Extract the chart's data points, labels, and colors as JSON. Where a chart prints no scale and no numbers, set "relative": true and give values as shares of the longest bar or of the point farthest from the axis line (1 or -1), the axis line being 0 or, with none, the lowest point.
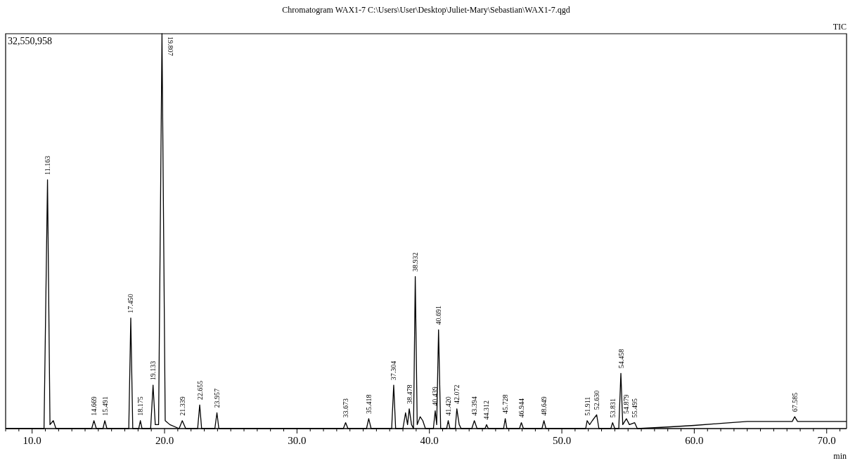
{
  "chart_data": {
    "type": "line",
    "relative": true,
    "title": "Chromatogram WAX1-7 C:\\Users\\User\\Desktop\\Juliet-Mary\\Sebastian\\WAX1-7.qgd",
    "xlabel": "min",
    "xlim": [
      8.0,
      71.5
    ],
    "xticks": [
      {
        "value": 8,
        "label": null
      },
      {
        "value": 9,
        "label": null
      },
      {
        "value": 10,
        "label": "10.0"
      },
      {
        "value": 11,
        "label": null
      },
      {
        "value": 12,
        "label": null
      },
      {
        "value": 13,
        "label": null
      },
      {
        "value": 14,
        "label": null
      },
      {
        "value": 15,
        "label": null
      },
      {
        "value": 16,
        "label": null
      },
      {
        "value": 17,
        "label": null
      },
      {
        "value": 18,
        "label": null
      },
      {
        "value": 19,
        "label": null
      },
      {
        "value": 20,
        "label": "20.0"
      },
      {
        "value": 21,
        "label": null
      },
      {
        "value": 22,
        "label": null
      },
      {
        "value": 23,
        "label": null
      },
      {
        "value": 24,
        "label": null
      },
      {
        "value": 25,
        "label": null
      },
      {
        "value": 26,
        "label": null
      },
      {
        "value": 27,
        "label": null
      },
      {
        "value": 28,
        "label": null
      },
      {
        "value": 29,
        "label": null
      },
      {
        "value": 30,
        "label": "30.0"
      },
      {
        "value": 31,
        "label": null
      },
      {
        "value": 32,
        "label": null
      },
      {
        "value": 33,
        "label": null
      },
      {
        "value": 34,
        "label": null
      },
      {
        "value": 35,
        "label": null
      },
      {
        "value": 36,
        "label": null
      },
      {
        "value": 37,
        "label": null
      },
      {
        "value": 38,
        "label": null
      },
      {
        "value": 39,
        "label": null
      },
      {
        "value": 40,
        "label": "40.0"
      },
      {
        "value": 41,
        "label": null
      },
      {
        "value": 42,
        "label": null
      },
      {
        "value": 43,
        "label": null
      },
      {
        "value": 44,
        "label": null
      },
      {
        "value": 45,
        "label": null
      },
      {
        "value": 46,
        "label": null
      },
      {
        "value": 47,
        "label": null
      },
      {
        "value": 48,
        "label": null
      },
      {
        "value": 49,
        "label": null
      },
      {
        "value": 50,
        "label": "50.0"
      },
      {
        "value": 51,
        "label": null
      },
      {
        "value": 52,
        "label": null
      },
      {
        "value": 53,
        "label": null
      },
      {
        "value": 54,
        "label": null
      },
      {
        "value": 55,
        "label": null
      },
      {
        "value": 56,
        "label": null
      },
      {
        "value": 57,
        "label": null
      },
      {
        "value": 58,
        "label": null
      },
      {
        "value": 59,
        "label": null
      },
      {
        "value": 60,
        "label": "60.0"
      },
      {
        "value": 61,
        "label": null
      },
      {
        "value": 62,
        "label": null
      },
      {
        "value": 63,
        "label": null
      },
      {
        "value": 64,
        "label": null
      },
      {
        "value": 65,
        "label": null
      },
      {
        "value": 66,
        "label": null
      },
      {
        "value": 67,
        "label": null
      },
      {
        "value": 68,
        "label": null
      },
      {
        "value": 69,
        "label": null
      },
      {
        "value": 70,
        "label": "70.0"
      },
      {
        "value": 71,
        "label": null
      }
    ],
    "legend": "top right",
    "series": [
      {
        "name": "TIC",
        "color": "#000000",
        "x": [
          8.0,
          10.9,
          11.163,
          11.35,
          11.6,
          11.8,
          14.5,
          14.669,
          14.85,
          15.35,
          15.491,
          15.65,
          17.3,
          17.45,
          17.6,
          18.05,
          18.175,
          18.3,
          18.95,
          19.133,
          19.3,
          19.55,
          19.807,
          20.05,
          20.4,
          21.1,
          21.339,
          21.6,
          22.5,
          22.655,
          22.8,
          23.8,
          23.957,
          24.1,
          33.5,
          33.673,
          33.85,
          35.25,
          35.418,
          35.6,
          37.15,
          37.304,
          37.45,
          38.0,
          38.2,
          38.35,
          38.478,
          38.65,
          38.8,
          38.932,
          39.08,
          39.3,
          39.5,
          39.7,
          40.3,
          40.439,
          40.55,
          40.691,
          40.85,
          41.3,
          41.42,
          41.55,
          41.95,
          42.072,
          42.25,
          42.4,
          43.2,
          43.394,
          43.6,
          44.2,
          44.312,
          44.45,
          45.6,
          45.728,
          45.85,
          46.8,
          46.944,
          47.1,
          48.5,
          48.649,
          48.8,
          51.8,
          51.911,
          52.1,
          52.3,
          52.63,
          52.8,
          53.7,
          53.831,
          54.0,
          54.3,
          54.458,
          54.6,
          54.879,
          55.1,
          55.495,
          55.7,
          58,
          60,
          62,
          64,
          67.4,
          67.585,
          67.8,
          71.5
        ],
        "values": [
          0,
          0,
          0.63,
          0.01,
          0.02,
          0,
          0,
          0.02,
          0,
          0,
          0.02,
          0,
          0,
          0.28,
          0,
          0,
          0.02,
          0,
          0,
          0.11,
          0.01,
          0.01,
          1,
          0.02,
          0.01,
          0,
          0.02,
          0,
          0,
          0.06,
          0,
          0,
          0.04,
          0,
          0,
          0.015,
          0,
          0,
          0.025,
          0,
          0,
          0.11,
          0,
          0,
          0.04,
          0.01,
          0.05,
          0.01,
          0,
          0.385,
          0.01,
          0.03,
          0.02,
          0,
          0,
          0.045,
          0.01,
          0.25,
          0,
          0,
          0.02,
          0,
          0,
          0.05,
          0.01,
          0,
          0,
          0.02,
          0,
          0,
          0.01,
          0,
          0,
          0.025,
          0,
          0,
          0.015,
          0,
          0,
          0.02,
          0,
          0,
          0.02,
          0.01,
          0.02,
          0.035,
          0,
          0,
          0.015,
          0,
          0,
          0.14,
          0.01,
          0.025,
          0.01,
          0.015,
          0,
          0.004,
          0.008,
          0.013,
          0.018,
          0.018,
          0.03,
          0.018,
          0.018
        ]
      }
    ],
    "annotations": [
      "32,550,958",
      {
        "text": "11.163",
        "x": 11.163,
        "y": 0.63
      },
      {
        "text": "14.669",
        "x": 14.669,
        "y": 0.02
      },
      {
        "text": "15.491",
        "x": 15.491,
        "y": 0.02
      },
      {
        "text": "17.450",
        "x": 17.45,
        "y": 0.28
      },
      {
        "text": "18.175",
        "x": 18.175,
        "y": 0.02
      },
      {
        "text": "19.133",
        "x": 19.133,
        "y": 0.11
      },
      {
        "text": "19.807",
        "x": 19.807,
        "y": 1
      },
      {
        "text": "21.339",
        "x": 21.339,
        "y": 0.02
      },
      {
        "text": "22.655",
        "x": 22.655,
        "y": 0.06
      },
      {
        "text": "23.957",
        "x": 23.957,
        "y": 0.04
      },
      {
        "text": "33.673",
        "x": 33.673,
        "y": 0.015
      },
      {
        "text": "35.418",
        "x": 35.418,
        "y": 0.025
      },
      {
        "text": "37.304",
        "x": 37.304,
        "y": 0.11
      },
      {
        "text": "38.478",
        "x": 38.478,
        "y": 0.05
      },
      {
        "text": "38.932",
        "x": 38.932,
        "y": 0.385
      },
      {
        "text": "40.439",
        "x": 40.439,
        "y": 0.045
      },
      {
        "text": "40.691",
        "x": 40.691,
        "y": 0.25
      },
      {
        "text": "41.420",
        "x": 41.42,
        "y": 0.02
      },
      {
        "text": "42.072",
        "x": 42.072,
        "y": 0.05
      },
      {
        "text": "43.394",
        "x": 43.394,
        "y": 0.02
      },
      {
        "text": "44.312",
        "x": 44.312,
        "y": 0.01
      },
      {
        "text": "45.728",
        "x": 45.728,
        "y": 0.025
      },
      {
        "text": "46.944",
        "x": 46.944,
        "y": 0.015
      },
      {
        "text": "48.649",
        "x": 48.649,
        "y": 0.02
      },
      {
        "text": "51.911",
        "x": 51.911,
        "y": 0.02
      },
      {
        "text": "52.630",
        "x": 52.63,
        "y": 0.035
      },
      {
        "text": "53.831",
        "x": 53.831,
        "y": 0.015
      },
      {
        "text": "54.458",
        "x": 54.458,
        "y": 0.14
      },
      {
        "text": "54.879",
        "x": 54.879,
        "y": 0.025
      },
      {
        "text": "55.495",
        "x": 55.495,
        "y": 0.015
      },
      {
        "text": "67.585",
        "x": 67.585,
        "y": 0.03
      }
    ]
  }
}
